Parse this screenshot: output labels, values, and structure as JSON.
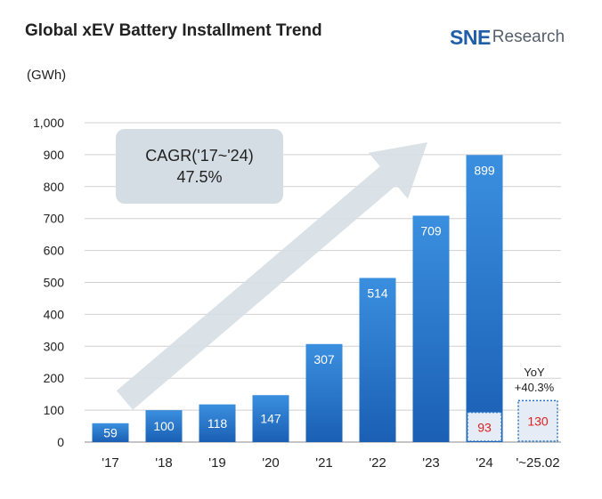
{
  "header": {
    "title": "Global xEV Battery Installment Trend",
    "logo_primary": "SNE",
    "logo_secondary": "Research"
  },
  "unit_label": "(GWh)",
  "cagr": {
    "label": "CAGR('17~'24)",
    "value": "47.5%"
  },
  "yoy": {
    "label": "YoY",
    "value": "+40.3%"
  },
  "chart_data": {
    "type": "bar",
    "title": "Global xEV Battery Installment Trend",
    "ylabel": "(GWh)",
    "categories": [
      "'17",
      "'18",
      "'19",
      "'20",
      "'21",
      "'22",
      "'23",
      "'24",
      "'~25.02"
    ],
    "values": [
      59,
      100,
      118,
      147,
      307,
      514,
      709,
      899,
      null
    ],
    "ylim": [
      0,
      1000
    ],
    "yticks": [
      0,
      100,
      200,
      300,
      400,
      500,
      600,
      700,
      800,
      900,
      1000
    ],
    "ytick_labels": [
      "0",
      "100",
      "200",
      "300",
      "400",
      "500",
      "600",
      "700",
      "800",
      "900",
      "1,000"
    ],
    "highlights": [
      {
        "category": "'24",
        "value": 93
      },
      {
        "category": "'~25.02",
        "value": 130
      }
    ],
    "grid": true,
    "colors": {
      "bar_top": "#3b8fdf",
      "bar_bottom": "#1a5fb4",
      "highlight_fill": "#e6ecf5",
      "highlight_border": "#2a78c9",
      "highlight_text": "#e02020",
      "grid": "#d0d0d0",
      "arrow": "#d6dee4"
    }
  }
}
